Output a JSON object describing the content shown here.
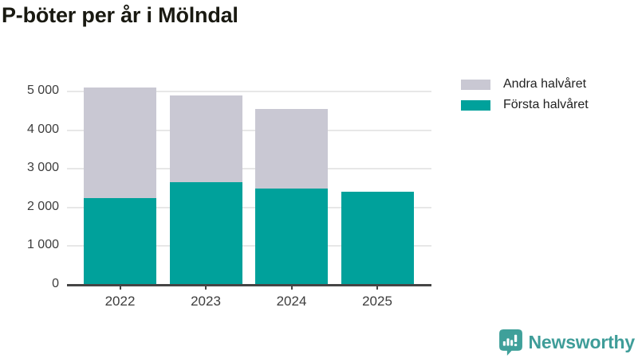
{
  "title": "P-böter per år i Mölndal",
  "legend": {
    "items": [
      {
        "label": "Andra halvåret",
        "color": "#C9C8D3"
      },
      {
        "label": "Första halvåret",
        "color": "#00A19B"
      }
    ]
  },
  "footer": {
    "brand": "Newsworthy",
    "brand_color": "#3F9D99",
    "logo_icon": "bar-chart-speech-bubble-icon"
  },
  "colors": {
    "bar_teal": "#00A19B",
    "bar_gray": "#C9C8D3",
    "grid": "#E7E7E7",
    "axis": "#454545",
    "tick_label": "#3D3D3D",
    "title": "#191911",
    "background": "#FFFFFF"
  },
  "chart_data": {
    "type": "bar",
    "stacked": true,
    "title": "P-böter per år i Mölndal",
    "categories": [
      "2022",
      "2023",
      "2024",
      "2025"
    ],
    "series": [
      {
        "name": "Första halvåret",
        "color": "#00A19B",
        "values": [
          2250,
          2650,
          2500,
          2400
        ]
      },
      {
        "name": "Andra halvåret",
        "color": "#C9C8D3",
        "values": [
          2850,
          2250,
          2050,
          0
        ]
      }
    ],
    "totals": [
      5100,
      4900,
      4550,
      2400
    ],
    "xlabel": "",
    "ylabel": "",
    "ylim": [
      0,
      5000
    ],
    "ytick_step": 1000,
    "ytick_labels": [
      "0",
      "1 000",
      "2 000",
      "3 000",
      "4 000",
      "5 000"
    ],
    "grid": true,
    "legend_position": "top-right"
  }
}
